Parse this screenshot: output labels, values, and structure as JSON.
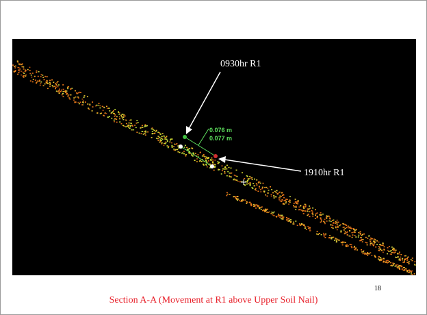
{
  "slide": {
    "image_labels": {
      "first_reading": "0930hr R1",
      "second_reading": "1910hr R1"
    },
    "measurements": [
      "0.076 m",
      "0.077 m"
    ],
    "caption": "Section A-A (Movement at R1 above Upper Soil Nail)",
    "page_number": "18"
  }
}
